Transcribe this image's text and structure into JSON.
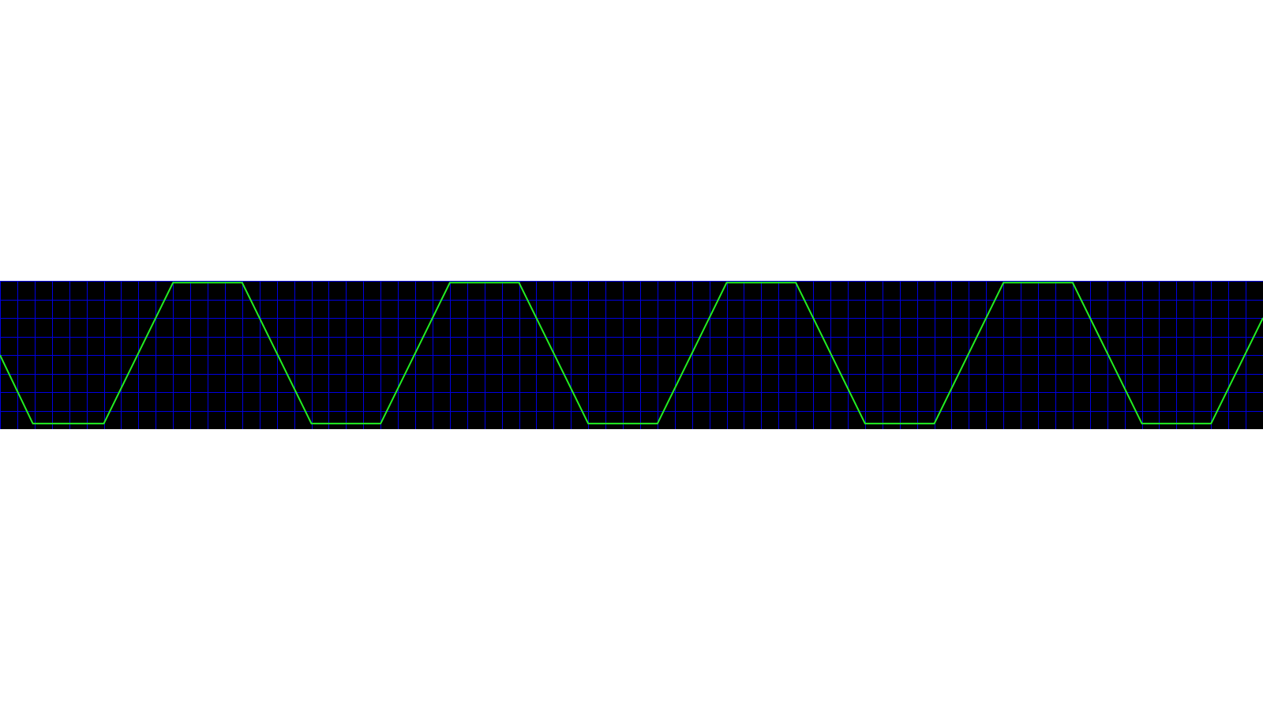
{
  "colors": {
    "page_background": "#ffffff",
    "plot_background": "#000000",
    "grid": "#0000e0",
    "trace": "#22ee22"
  },
  "chart_data": {
    "type": "line",
    "title": "",
    "xlabel": "",
    "ylabel": "",
    "grid": true,
    "legend": "none",
    "x_divisions": 73,
    "y_divisions": 8,
    "xlim": [
      0,
      73
    ],
    "ylim": [
      0,
      8
    ],
    "series": [
      {
        "x": [
          0,
          1.9,
          6.0,
          10.0,
          14.0,
          18.0,
          22.0,
          26.0,
          30.0,
          34.0,
          38.0,
          42.0,
          46.0,
          50.0,
          54.0,
          58.0,
          62.0,
          66.0,
          70.0,
          73.0
        ],
        "y": [
          4.0,
          0.3,
          0.3,
          7.9,
          7.9,
          0.3,
          0.3,
          7.9,
          7.9,
          0.3,
          0.3,
          7.9,
          7.9,
          0.3,
          0.3,
          7.9,
          7.9,
          0.3,
          0.3,
          6.0
        ]
      }
    ]
  }
}
